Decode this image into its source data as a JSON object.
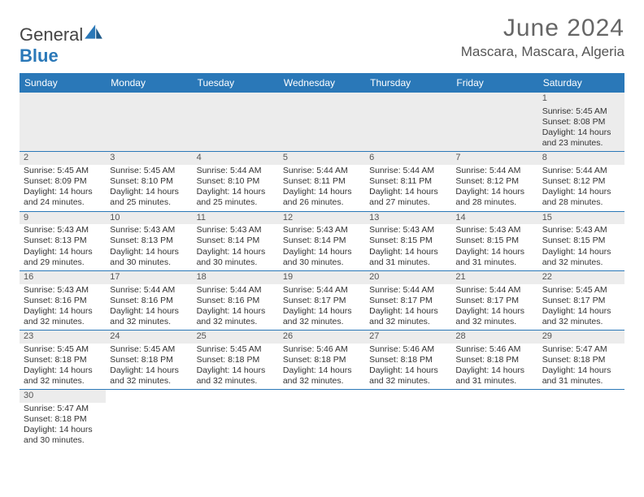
{
  "brand": {
    "part1": "General",
    "part2": "Blue"
  },
  "header": {
    "month": "June 2024",
    "location": "Mascara, Mascara, Algeria"
  },
  "week_days": [
    "Sunday",
    "Monday",
    "Tuesday",
    "Wednesday",
    "Thursday",
    "Friday",
    "Saturday"
  ],
  "colors": {
    "header_bg": "#2a78b8",
    "daynum_bg": "#ececec",
    "grid_line": "#2a78b8",
    "text": "#333333",
    "title": "#666666"
  },
  "weeks": [
    [
      null,
      null,
      null,
      null,
      null,
      null,
      {
        "n": "1",
        "r": "Sunrise: 5:45 AM",
        "s": "Sunset: 8:08 PM",
        "d1": "Daylight: 14 hours",
        "d2": "and 23 minutes."
      }
    ],
    [
      {
        "n": "2",
        "r": "Sunrise: 5:45 AM",
        "s": "Sunset: 8:09 PM",
        "d1": "Daylight: 14 hours",
        "d2": "and 24 minutes."
      },
      {
        "n": "3",
        "r": "Sunrise: 5:45 AM",
        "s": "Sunset: 8:10 PM",
        "d1": "Daylight: 14 hours",
        "d2": "and 25 minutes."
      },
      {
        "n": "4",
        "r": "Sunrise: 5:44 AM",
        "s": "Sunset: 8:10 PM",
        "d1": "Daylight: 14 hours",
        "d2": "and 25 minutes."
      },
      {
        "n": "5",
        "r": "Sunrise: 5:44 AM",
        "s": "Sunset: 8:11 PM",
        "d1": "Daylight: 14 hours",
        "d2": "and 26 minutes."
      },
      {
        "n": "6",
        "r": "Sunrise: 5:44 AM",
        "s": "Sunset: 8:11 PM",
        "d1": "Daylight: 14 hours",
        "d2": "and 27 minutes."
      },
      {
        "n": "7",
        "r": "Sunrise: 5:44 AM",
        "s": "Sunset: 8:12 PM",
        "d1": "Daylight: 14 hours",
        "d2": "and 28 minutes."
      },
      {
        "n": "8",
        "r": "Sunrise: 5:44 AM",
        "s": "Sunset: 8:12 PM",
        "d1": "Daylight: 14 hours",
        "d2": "and 28 minutes."
      }
    ],
    [
      {
        "n": "9",
        "r": "Sunrise: 5:43 AM",
        "s": "Sunset: 8:13 PM",
        "d1": "Daylight: 14 hours",
        "d2": "and 29 minutes."
      },
      {
        "n": "10",
        "r": "Sunrise: 5:43 AM",
        "s": "Sunset: 8:13 PM",
        "d1": "Daylight: 14 hours",
        "d2": "and 30 minutes."
      },
      {
        "n": "11",
        "r": "Sunrise: 5:43 AM",
        "s": "Sunset: 8:14 PM",
        "d1": "Daylight: 14 hours",
        "d2": "and 30 minutes."
      },
      {
        "n": "12",
        "r": "Sunrise: 5:43 AM",
        "s": "Sunset: 8:14 PM",
        "d1": "Daylight: 14 hours",
        "d2": "and 30 minutes."
      },
      {
        "n": "13",
        "r": "Sunrise: 5:43 AM",
        "s": "Sunset: 8:15 PM",
        "d1": "Daylight: 14 hours",
        "d2": "and 31 minutes."
      },
      {
        "n": "14",
        "r": "Sunrise: 5:43 AM",
        "s": "Sunset: 8:15 PM",
        "d1": "Daylight: 14 hours",
        "d2": "and 31 minutes."
      },
      {
        "n": "15",
        "r": "Sunrise: 5:43 AM",
        "s": "Sunset: 8:15 PM",
        "d1": "Daylight: 14 hours",
        "d2": "and 32 minutes."
      }
    ],
    [
      {
        "n": "16",
        "r": "Sunrise: 5:43 AM",
        "s": "Sunset: 8:16 PM",
        "d1": "Daylight: 14 hours",
        "d2": "and 32 minutes."
      },
      {
        "n": "17",
        "r": "Sunrise: 5:44 AM",
        "s": "Sunset: 8:16 PM",
        "d1": "Daylight: 14 hours",
        "d2": "and 32 minutes."
      },
      {
        "n": "18",
        "r": "Sunrise: 5:44 AM",
        "s": "Sunset: 8:16 PM",
        "d1": "Daylight: 14 hours",
        "d2": "and 32 minutes."
      },
      {
        "n": "19",
        "r": "Sunrise: 5:44 AM",
        "s": "Sunset: 8:17 PM",
        "d1": "Daylight: 14 hours",
        "d2": "and 32 minutes."
      },
      {
        "n": "20",
        "r": "Sunrise: 5:44 AM",
        "s": "Sunset: 8:17 PM",
        "d1": "Daylight: 14 hours",
        "d2": "and 32 minutes."
      },
      {
        "n": "21",
        "r": "Sunrise: 5:44 AM",
        "s": "Sunset: 8:17 PM",
        "d1": "Daylight: 14 hours",
        "d2": "and 32 minutes."
      },
      {
        "n": "22",
        "r": "Sunrise: 5:45 AM",
        "s": "Sunset: 8:17 PM",
        "d1": "Daylight: 14 hours",
        "d2": "and 32 minutes."
      }
    ],
    [
      {
        "n": "23",
        "r": "Sunrise: 5:45 AM",
        "s": "Sunset: 8:18 PM",
        "d1": "Daylight: 14 hours",
        "d2": "and 32 minutes."
      },
      {
        "n": "24",
        "r": "Sunrise: 5:45 AM",
        "s": "Sunset: 8:18 PM",
        "d1": "Daylight: 14 hours",
        "d2": "and 32 minutes."
      },
      {
        "n": "25",
        "r": "Sunrise: 5:45 AM",
        "s": "Sunset: 8:18 PM",
        "d1": "Daylight: 14 hours",
        "d2": "and 32 minutes."
      },
      {
        "n": "26",
        "r": "Sunrise: 5:46 AM",
        "s": "Sunset: 8:18 PM",
        "d1": "Daylight: 14 hours",
        "d2": "and 32 minutes."
      },
      {
        "n": "27",
        "r": "Sunrise: 5:46 AM",
        "s": "Sunset: 8:18 PM",
        "d1": "Daylight: 14 hours",
        "d2": "and 32 minutes."
      },
      {
        "n": "28",
        "r": "Sunrise: 5:46 AM",
        "s": "Sunset: 8:18 PM",
        "d1": "Daylight: 14 hours",
        "d2": "and 31 minutes."
      },
      {
        "n": "29",
        "r": "Sunrise: 5:47 AM",
        "s": "Sunset: 8:18 PM",
        "d1": "Daylight: 14 hours",
        "d2": "and 31 minutes."
      }
    ],
    [
      {
        "n": "30",
        "r": "Sunrise: 5:47 AM",
        "s": "Sunset: 8:18 PM",
        "d1": "Daylight: 14 hours",
        "d2": "and 30 minutes."
      },
      null,
      null,
      null,
      null,
      null,
      null
    ]
  ]
}
